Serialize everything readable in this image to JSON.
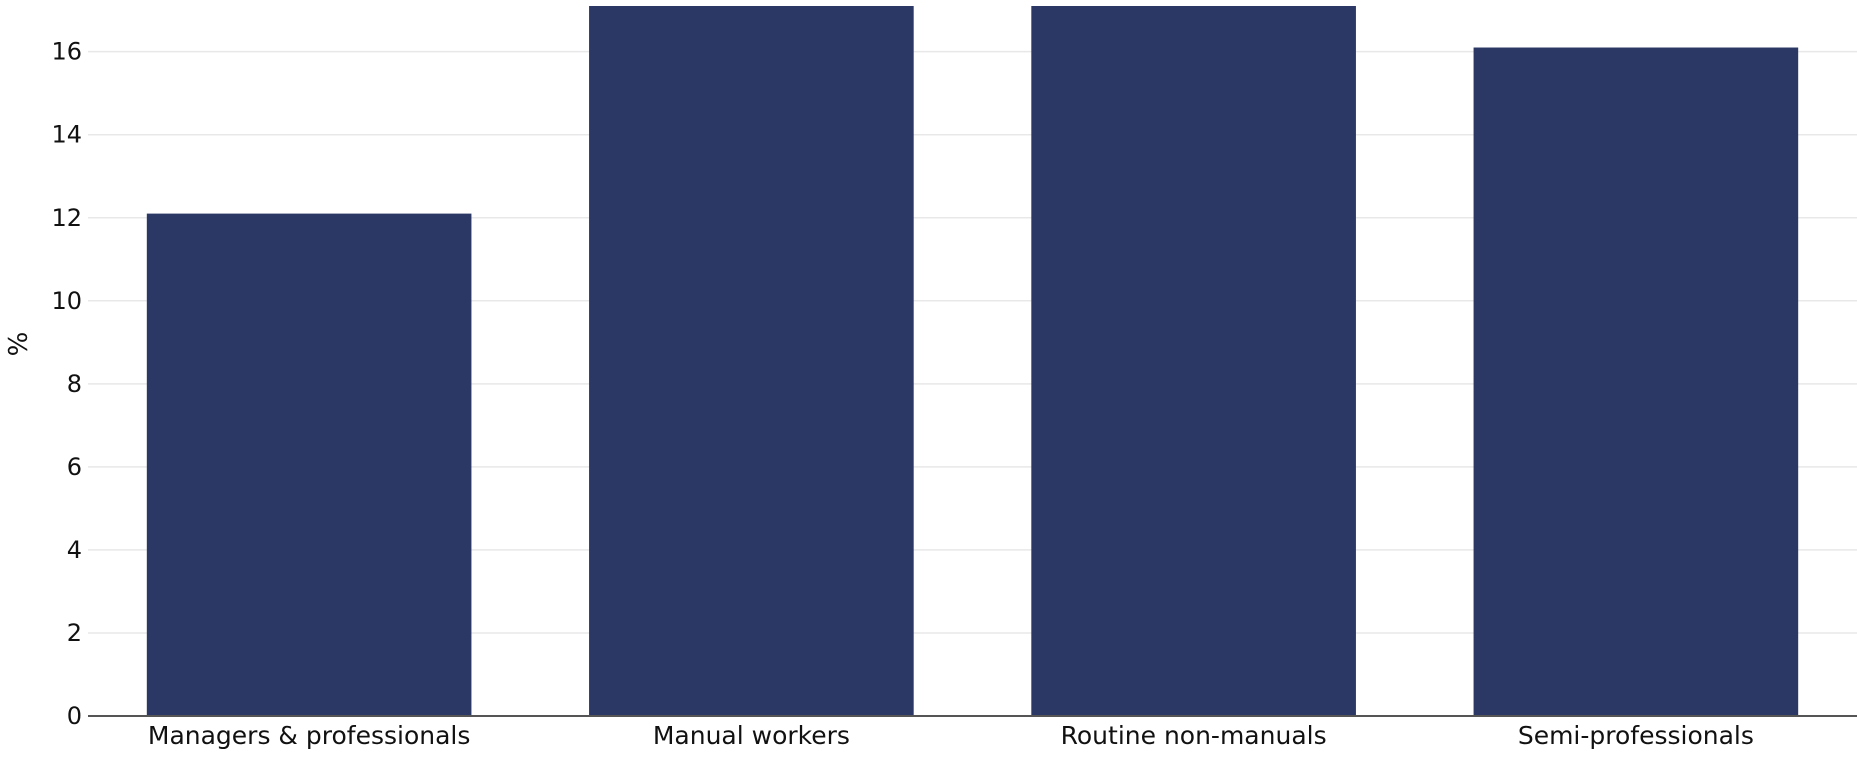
{
  "chart_data": {
    "type": "bar",
    "categories": [
      "Managers & professionals",
      "Manual workers",
      "Routine non-manuals",
      "Semi-professionals"
    ],
    "values": [
      12.1,
      17.1,
      17.1,
      16.1
    ],
    "title": "",
    "xlabel": "",
    "ylabel": "%",
    "ylim": [
      0,
      17.1
    ],
    "yticks": [
      0,
      2,
      4,
      6,
      8,
      10,
      12,
      14,
      16
    ],
    "grid": true,
    "legend": "none",
    "bar_color": "#2b3764"
  }
}
